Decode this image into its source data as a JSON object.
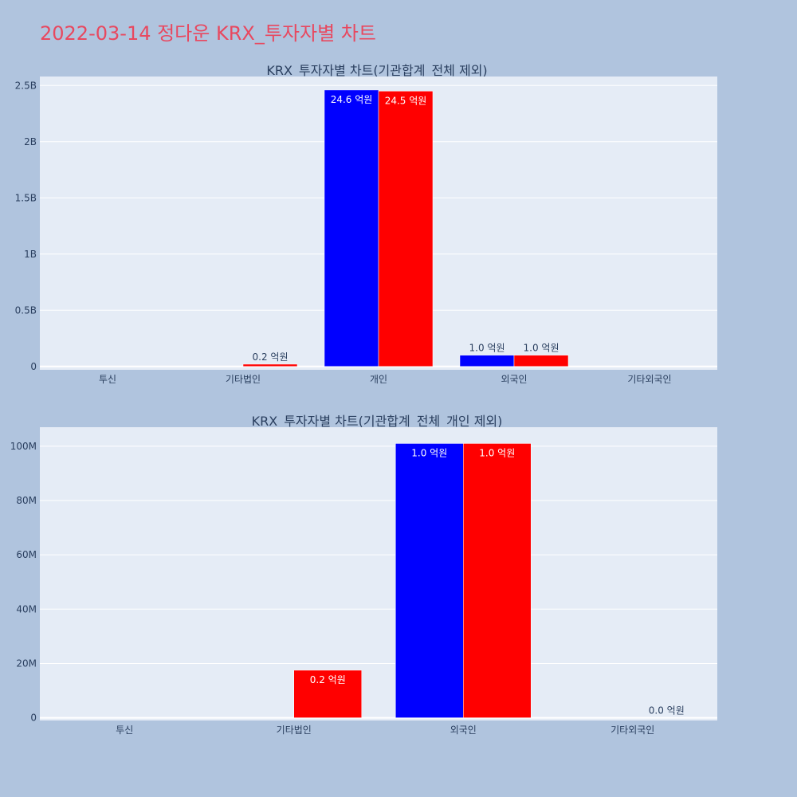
{
  "page": {
    "title": "2022-03-14 정다운 KRX_투자자별 차트",
    "background": "#b0c4de",
    "title_color": "#e8485f"
  },
  "chart_data": [
    {
      "type": "bar",
      "title": "KRX_투자자별 차트(기관합계_전체 제외)",
      "categories": [
        "투신",
        "기타법인",
        "개인",
        "외국인",
        "기타외국인"
      ],
      "ylim": [
        -30000000,
        2580000000
      ],
      "yticks": [
        0,
        500000000,
        1000000000,
        1500000000,
        2000000000,
        2500000000
      ],
      "ytick_labels": [
        "0",
        "0.5B",
        "1B",
        "1.5B",
        "2B",
        "2.5B"
      ],
      "grid": true,
      "plot_bg": "#e5ecf6",
      "series": [
        {
          "color": "#0000ff",
          "values": [
            null,
            null,
            2460000000,
            100000000,
            null
          ],
          "labels": [
            null,
            null,
            "24.6 억원",
            "1.0 억원",
            null
          ]
        },
        {
          "color": "#ff0000",
          "values": [
            null,
            20000000,
            2450000000,
            100000000,
            null
          ],
          "labels": [
            null,
            "0.2 억원",
            "24.5 억원",
            "1.0 억원",
            null
          ]
        }
      ]
    },
    {
      "type": "bar",
      "title": "KRX_투자자별 차트(기관합계_전체_개인 제외)",
      "categories": [
        "투신",
        "기타법인",
        "외국인",
        "기타외국인"
      ],
      "ylim": [
        -1000000,
        107000000
      ],
      "yticks": [
        0,
        20000000,
        40000000,
        60000000,
        80000000,
        100000000
      ],
      "ytick_labels": [
        "0",
        "20M",
        "40M",
        "60M",
        "80M",
        "100M"
      ],
      "grid": true,
      "plot_bg": "#e5ecf6",
      "series": [
        {
          "color": "#0000ff",
          "values": [
            null,
            null,
            101000000,
            null
          ],
          "labels": [
            null,
            null,
            "1.0 억원",
            null
          ]
        },
        {
          "color": "#ff0000",
          "values": [
            null,
            17500000,
            101000000,
            0
          ],
          "labels": [
            null,
            "0.2 억원",
            "1.0 억원",
            "0.0 억원"
          ]
        }
      ]
    }
  ]
}
